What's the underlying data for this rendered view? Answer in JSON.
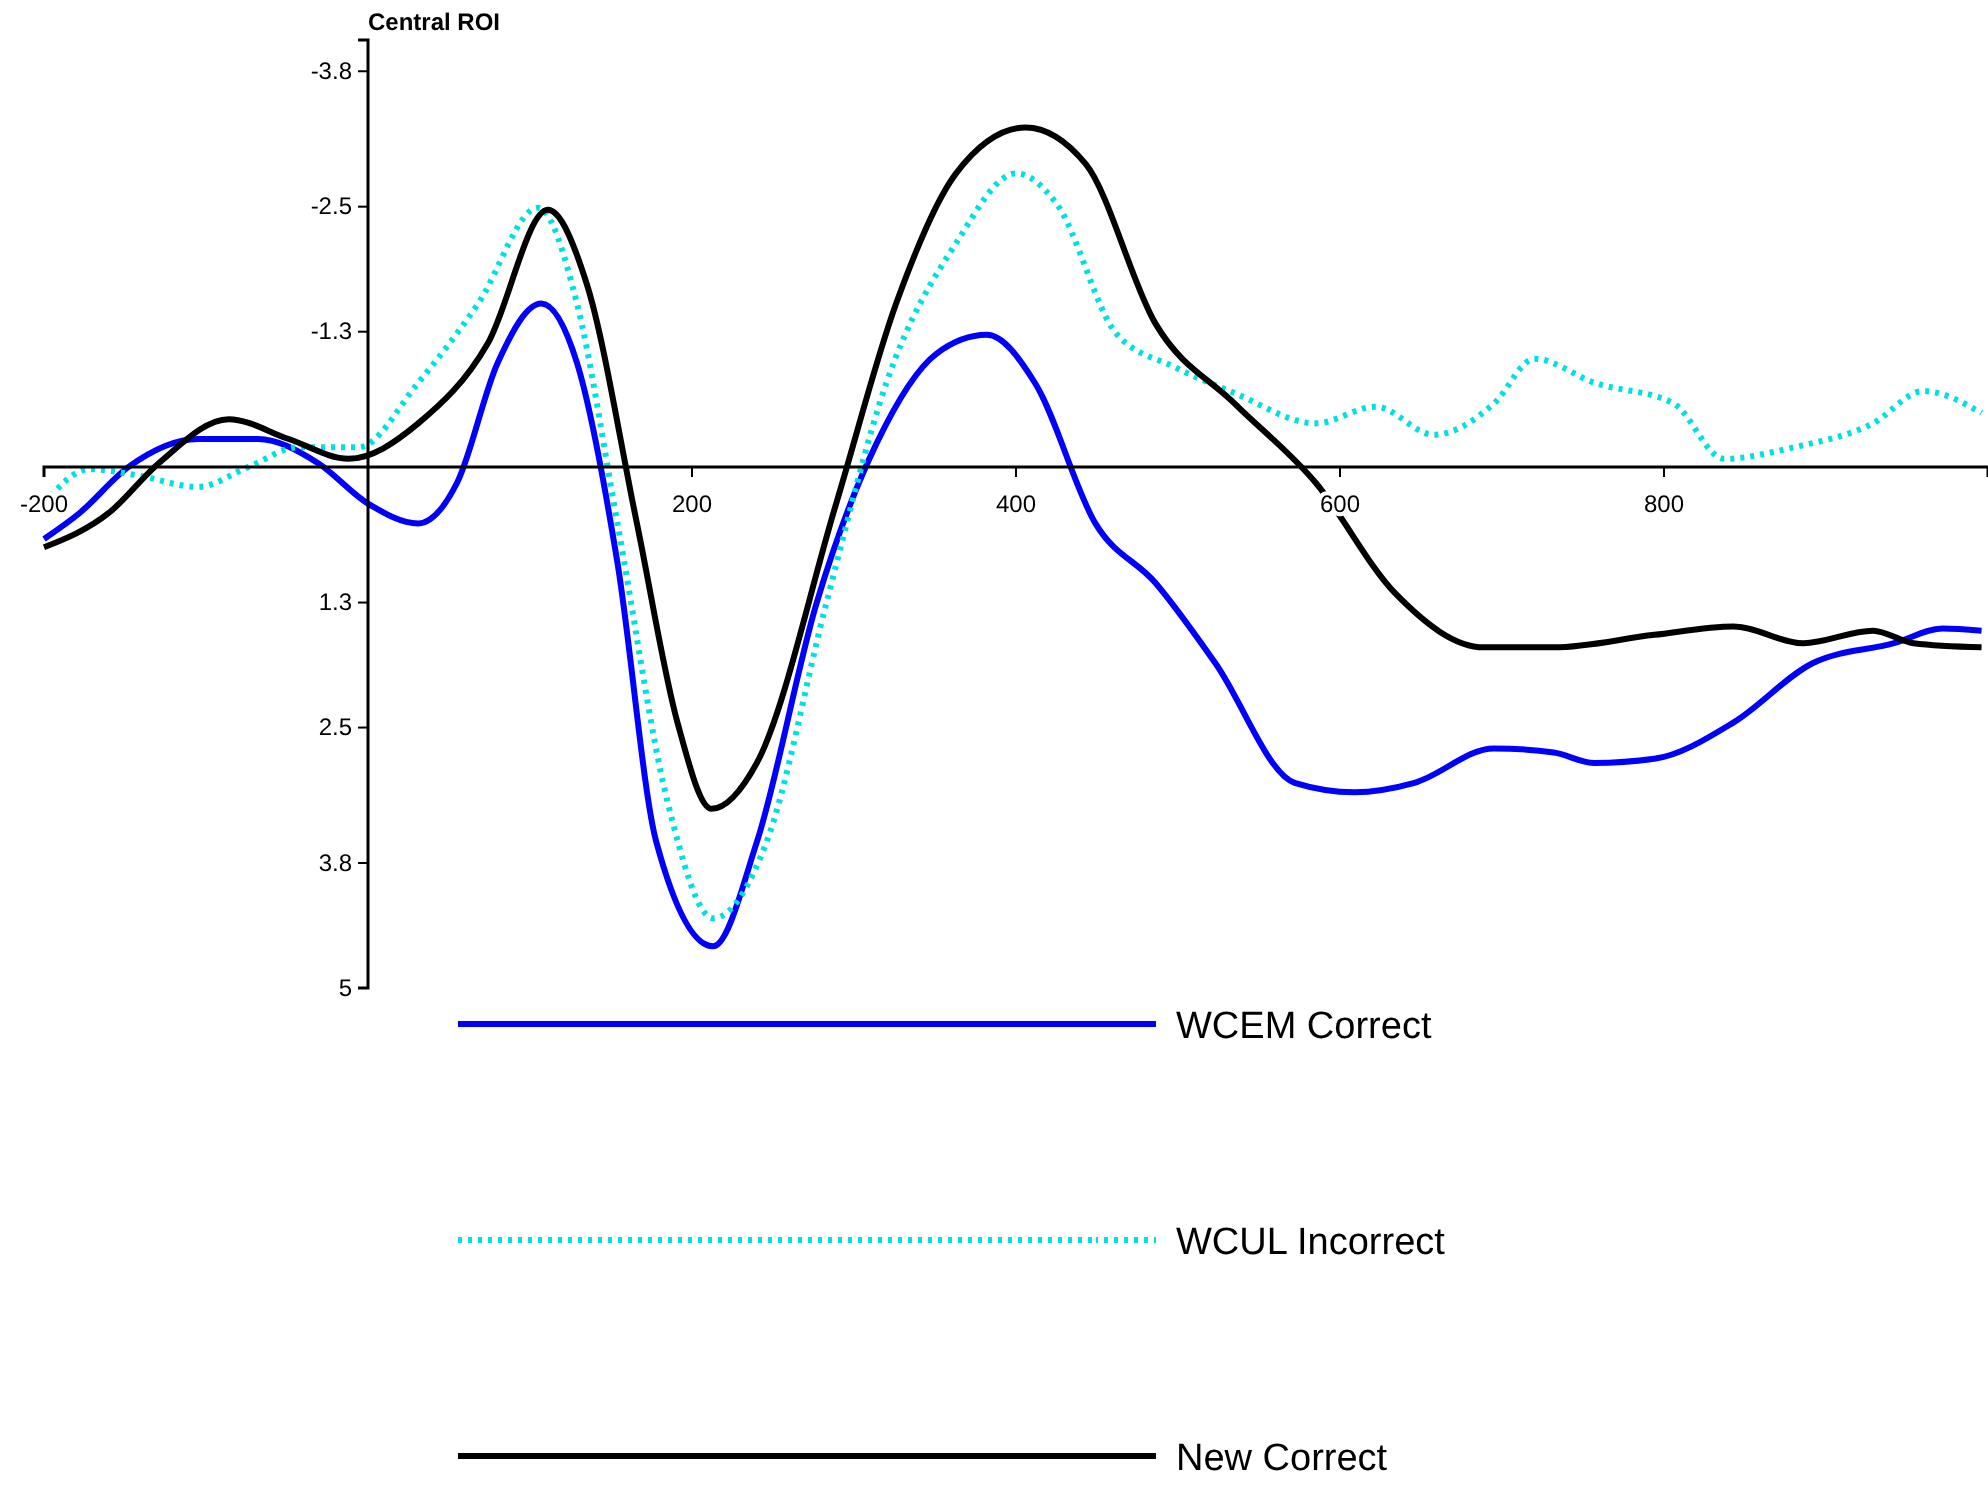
{
  "chart_data": {
    "type": "line",
    "title": "Central ROI",
    "xlim": [
      -200,
      1000
    ],
    "xticks": [
      -200,
      200,
      400,
      600,
      800
    ],
    "ylim": [
      5,
      -4.1
    ],
    "yticks": [
      -3.8,
      -2.5,
      -1.3,
      1.3,
      2.5,
      3.8,
      5
    ],
    "grid": false,
    "legend": "bottom",
    "marker": "none",
    "series": [
      {
        "name": "WCEM Correct",
        "color": "#0000ff",
        "line_style": "solid",
        "x": [
          -200,
          -178,
          -148,
          -105,
          -68,
          -31,
          0,
          31,
          55,
          80,
          107,
          129,
          154,
          178,
          213,
          240,
          277,
          314,
          351,
          382,
          412,
          449,
          486,
          523,
          572,
          609,
          646,
          695,
          732,
          757,
          794,
          843,
          892,
          942,
          972,
          996
        ],
        "values": [
          0.69,
          0.44,
          0,
          -0.27,
          -0.27,
          -0.04,
          0.35,
          0.54,
          0.15,
          -1.0,
          -1.57,
          -1.0,
          0.92,
          3.6,
          4.6,
          3.6,
          1.3,
          -0.23,
          -1.09,
          -1.27,
          -0.8,
          0.54,
          1.11,
          1.88,
          3.03,
          3.12,
          3.03,
          2.7,
          2.74,
          2.84,
          2.8,
          2.45,
          1.88,
          1.69,
          1.55,
          1.57
        ]
      },
      {
        "name": "WCUL Incorrect",
        "color": "#00e0e0",
        "line_style": "dotted",
        "x": [
          -200,
          -172,
          -142,
          -105,
          -74,
          -43,
          -6,
          31,
          68,
          105,
          129,
          154,
          185,
          213,
          246,
          283,
          320,
          363,
          400,
          425,
          462,
          498,
          535,
          585,
          622,
          658,
          695,
          720,
          757,
          806,
          837,
          880,
          929,
          960,
          996
        ],
        "values": [
          0.35,
          0.02,
          0.08,
          0.19,
          0,
          -0.19,
          -0.19,
          -0.81,
          -1.57,
          -2.49,
          -1.57,
          0.54,
          3.22,
          4.33,
          3.6,
          1.3,
          -0.81,
          -2.15,
          -2.82,
          -2.53,
          -1.28,
          -0.96,
          -0.71,
          -0.42,
          -0.58,
          -0.31,
          -0.61,
          -1.04,
          -0.81,
          -0.61,
          -0.08,
          -0.19,
          -0.42,
          -0.73,
          -0.52
        ]
      },
      {
        "name": "New Correct",
        "color": "#000000",
        "line_style": "solid",
        "x": [
          -200,
          -160,
          -129,
          -86,
          -49,
          -12,
          31,
          74,
          111,
          135,
          166,
          191,
          212,
          240,
          289,
          326,
          363,
          406,
          443,
          486,
          535,
          585,
          634,
          689,
          732,
          794,
          843,
          886,
          929,
          954,
          996
        ],
        "values": [
          0.77,
          0.44,
          -0.04,
          -0.46,
          -0.27,
          -0.08,
          -0.42,
          -1.19,
          -2.47,
          -1.76,
          0.54,
          2.45,
          3.28,
          2.84,
          0.35,
          -1.57,
          -2.82,
          -3.26,
          -2.91,
          -1.38,
          -0.61,
          0.15,
          1.21,
          1.73,
          1.73,
          1.61,
          1.53,
          1.69,
          1.57,
          1.69,
          1.73
        ]
      }
    ]
  }
}
